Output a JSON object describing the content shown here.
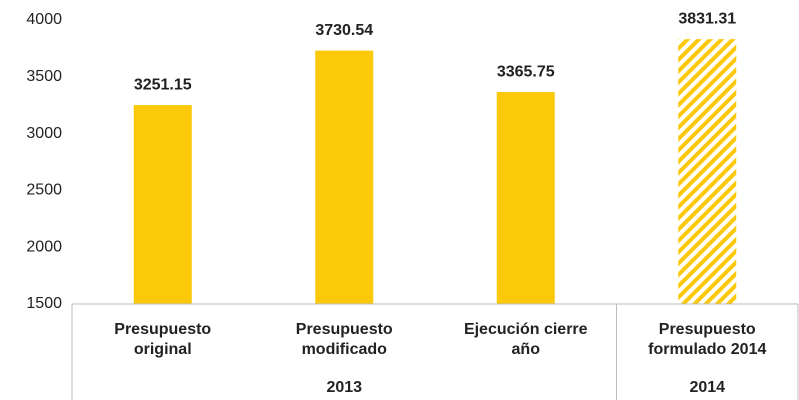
{
  "chart_data": {
    "type": "bar",
    "categories": [
      [
        "Presupuesto",
        "original"
      ],
      [
        "Presupuesto",
        "modificado"
      ],
      [
        "Ejecución cierre",
        "año"
      ],
      [
        "Presupuesto",
        "formulado 2014"
      ]
    ],
    "values": [
      3251.15,
      3730.54,
      3365.75,
      3831.31
    ],
    "color": "#fcc80a",
    "hatched": [
      false,
      false,
      false,
      true
    ],
    "groups": [
      {
        "label": "2013",
        "span": 3
      },
      {
        "label": "2014",
        "span": 1
      }
    ],
    "ylim": [
      1500,
      4000
    ],
    "yticks": [
      1500,
      2000,
      2500,
      3000,
      3500,
      4000
    ],
    "grid": false
  }
}
